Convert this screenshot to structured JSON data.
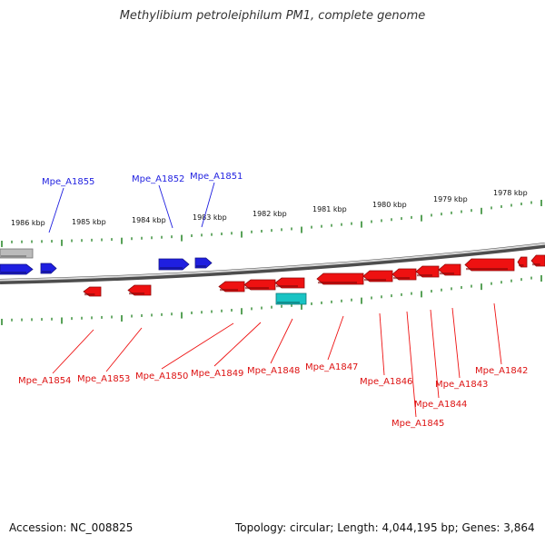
{
  "title": "Methylibium petroleiphilum PM1, complete genome",
  "footer": {
    "accession": "Accession: NC_008825",
    "summary": "Topology: circular; Length: 4,044,195 bp; Genes: 3,864"
  },
  "colors": {
    "forward_gene": "#1f1fe0",
    "reverse_gene": "#ee1111",
    "highlight_gene": "#19c4c4",
    "other_feature": "#bbbbbb",
    "tick": "#2f8a2f",
    "backbone": "#888888"
  },
  "scale": {
    "labels": [
      "1986 kbp",
      "1985 kbp",
      "1984 kbp",
      "1983 kbp",
      "1982 kbp",
      "1981 kbp",
      "1980 kbp",
      "1979 kbp",
      "1978 kbp"
    ]
  },
  "genes": {
    "forward": [
      {
        "label": "Mpe_A1855",
        "color": "#1f1fe0"
      },
      {
        "label": "Mpe_A1852",
        "color": "#1f1fe0"
      },
      {
        "label": "Mpe_A1851",
        "color": "#1f1fe0"
      }
    ],
    "reverse": [
      {
        "label": "Mpe_A1854",
        "color": "#dd1111"
      },
      {
        "label": "Mpe_A1853",
        "color": "#dd1111"
      },
      {
        "label": "Mpe_A1850",
        "color": "#dd1111"
      },
      {
        "label": "Mpe_A1849",
        "color": "#dd1111"
      },
      {
        "label": "Mpe_A1848",
        "color": "#dd1111"
      },
      {
        "label": "Mpe_A1847",
        "color": "#dd1111"
      },
      {
        "label": "Mpe_A1846",
        "color": "#dd1111"
      },
      {
        "label": "Mpe_A1845",
        "color": "#dd1111"
      },
      {
        "label": "Mpe_A1844",
        "color": "#dd1111"
      },
      {
        "label": "Mpe_A1843",
        "color": "#dd1111"
      },
      {
        "label": "Mpe_A1842",
        "color": "#dd1111"
      }
    ]
  }
}
